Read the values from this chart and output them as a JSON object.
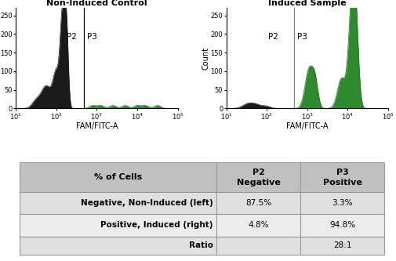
{
  "plot1_title": "Non-Induced Control",
  "plot2_title": "Induced Sample",
  "xlabel": "FAM/FITC-A",
  "ylabel": "Count",
  "yticks": [
    0,
    50,
    100,
    150,
    200,
    250
  ],
  "ylim": [
    0,
    270
  ],
  "gate_line_plot1_log": 2.68,
  "gate_line_plot2_log": 2.68,
  "p2_label": "P2",
  "p3_label": "P3",
  "black_color": "#1a1a1a",
  "green_color": "#1a6b1a",
  "green_fill": "#2d8b2d",
  "table_header_bg": "#c0c0c0",
  "table_row1_bg": "#e0e0e0",
  "table_row2_bg": "#ececec",
  "table_row3_bg": "#e0e0e0",
  "table_border": "#999999",
  "col0_header": "% of Cells",
  "col1_header": "P2\nNegative",
  "col2_header": "P3\nPositive",
  "row1_label": "Negative, Non-Induced (left)",
  "row2_label": "Positive, Induced (right)",
  "row3_label": "Ratio",
  "row1_col1": "87.5%",
  "row1_col2": "3.3%",
  "row2_col1": "4.8%",
  "row2_col2": "94.8%",
  "row3_col1": "",
  "row3_col2": "28:1",
  "title_fontsize": 8,
  "axis_fontsize": 7,
  "tick_fontsize": 6,
  "label_fontsize": 7.5,
  "table_header_fontsize": 8,
  "table_cell_fontsize": 7.5
}
